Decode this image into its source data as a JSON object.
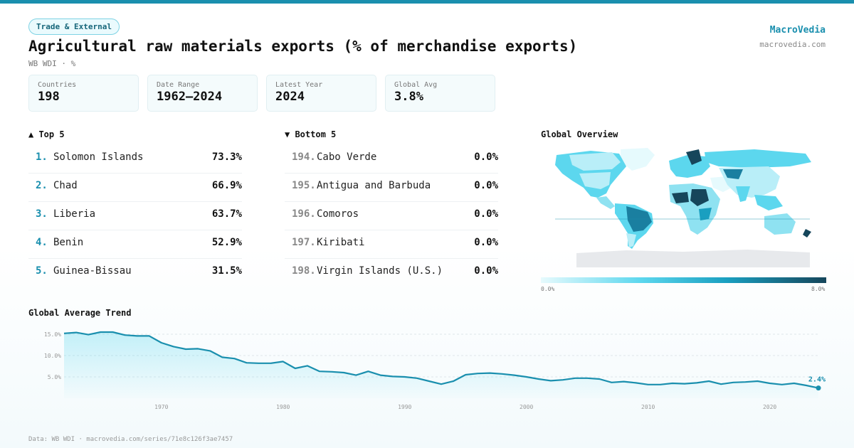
{
  "header": {
    "tag": "Trade & External",
    "title": "Agricultural raw materials exports (% of merchandise exports)",
    "subtitle": "WB WDI · %",
    "brand": "MacroVedia",
    "site": "macrovedia.com"
  },
  "stats": [
    {
      "label": "Countries",
      "value": "198"
    },
    {
      "label": "Date Range",
      "value": "1962–2024"
    },
    {
      "label": "Latest Year",
      "value": "2024"
    },
    {
      "label": "Global Avg",
      "value": "3.8%"
    }
  ],
  "top5": {
    "heading": "▲ Top 5",
    "items": [
      {
        "rank": "1.",
        "name": "Solomon Islands",
        "value": "73.3%"
      },
      {
        "rank": "2.",
        "name": "Chad",
        "value": "66.9%"
      },
      {
        "rank": "3.",
        "name": "Liberia",
        "value": "63.7%"
      },
      {
        "rank": "4.",
        "name": "Benin",
        "value": "52.9%"
      },
      {
        "rank": "5.",
        "name": "Guinea-Bissau",
        "value": "31.5%"
      }
    ]
  },
  "bottom5": {
    "heading": "▼ Bottom 5",
    "items": [
      {
        "rank": "194.",
        "name": "Cabo Verde",
        "value": "0.0%"
      },
      {
        "rank": "195.",
        "name": "Antigua and Barbuda",
        "value": "0.0%"
      },
      {
        "rank": "196.",
        "name": "Comoros",
        "value": "0.0%"
      },
      {
        "rank": "197.",
        "name": "Kiribati",
        "value": "0.0%"
      },
      {
        "rank": "198.",
        "name": "Virgin Islands (U.S.)",
        "value": "0.0%"
      }
    ]
  },
  "map": {
    "heading": "Global Overview",
    "legend_min": "0.0%",
    "legend_max": "8.0%",
    "colors": {
      "low": "#e6fafd",
      "mid": "#5cd7ee",
      "high": "#1a9fc0",
      "max": "#16465b",
      "nodata": "#e7e9ec"
    }
  },
  "trend": {
    "heading": "Global Average Trend",
    "last_label": "2.4%"
  },
  "footer": "Data: WB WDI · macrovedia.com/series/71e8c126f3ae7457",
  "colors": {
    "accent": "#1a8fae",
    "line": "#1a8fae"
  },
  "chart_data": {
    "type": "area",
    "title": "Global Average Trend",
    "xlabel": "",
    "ylabel": "",
    "ylim": [
      0,
      17
    ],
    "x_ticks": [
      1970,
      1980,
      1990,
      2000,
      2010,
      2020
    ],
    "y_ticks": [
      "5.0%",
      "10.0%",
      "15.0%"
    ],
    "grid": true,
    "x": [
      1962,
      1963,
      1964,
      1965,
      1966,
      1967,
      1968,
      1969,
      1970,
      1971,
      1972,
      1973,
      1974,
      1975,
      1976,
      1977,
      1978,
      1979,
      1980,
      1981,
      1982,
      1983,
      1984,
      1985,
      1986,
      1987,
      1988,
      1989,
      1990,
      1991,
      1992,
      1993,
      1994,
      1995,
      1996,
      1997,
      1998,
      1999,
      2000,
      2001,
      2002,
      2003,
      2004,
      2005,
      2006,
      2007,
      2008,
      2009,
      2010,
      2011,
      2012,
      2013,
      2014,
      2015,
      2016,
      2017,
      2018,
      2019,
      2020,
      2021,
      2022,
      2023,
      2024
    ],
    "series": [
      {
        "values": [
          15.2,
          15.4,
          14.9,
          15.5,
          15.5,
          14.8,
          14.6,
          14.6,
          13.0,
          12.1,
          11.5,
          11.6,
          11.1,
          9.6,
          9.3,
          8.3,
          8.2,
          8.2,
          8.6,
          7.0,
          7.6,
          6.3,
          6.2,
          6.0,
          5.4,
          6.3,
          5.4,
          5.1,
          5.0,
          4.7,
          4.0,
          3.3,
          4.0,
          5.5,
          5.8,
          5.9,
          5.7,
          5.4,
          5.0,
          4.5,
          4.1,
          4.3,
          4.7,
          4.7,
          4.5,
          3.7,
          3.9,
          3.6,
          3.2,
          3.2,
          3.5,
          3.4,
          3.6,
          4.0,
          3.3,
          3.7,
          3.8,
          4.0,
          3.5,
          3.2,
          3.5,
          3.0,
          2.4
        ]
      }
    ]
  }
}
